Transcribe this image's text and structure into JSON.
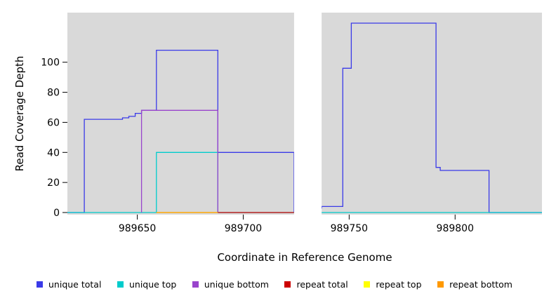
{
  "axes": {
    "xlabel": "Coordinate in Reference Genome",
    "ylabel": "Read Coverage Depth"
  },
  "chart_data": {
    "type": "line",
    "subtype": "step-coverage-plot",
    "title": "",
    "xlabel": "Coordinate in Reference Genome",
    "ylabel": "Read Coverage Depth",
    "xlim": [
      989617,
      989841
    ],
    "ylim": [
      0,
      133
    ],
    "x_ticks": [
      989650,
      989700,
      989750,
      989800
    ],
    "y_ticks": [
      0,
      20,
      40,
      60,
      80,
      100
    ],
    "grid": false,
    "plot_bg": "#d9d9d9",
    "figure_bg": "#ffffff",
    "tick_color": "#000000",
    "masked_region": {
      "x_start": 989724,
      "x_end": 989737
    },
    "legend_position": "bottom",
    "series": [
      {
        "name": "unique total",
        "color": "#3a3ae8",
        "points": [
          [
            989617,
            0
          ],
          [
            989625,
            0
          ],
          [
            989625,
            62
          ],
          [
            989643,
            62
          ],
          [
            989643,
            63
          ],
          [
            989646,
            63
          ],
          [
            989646,
            64
          ],
          [
            989649,
            64
          ],
          [
            989649,
            66
          ],
          [
            989652,
            66
          ],
          [
            989652,
            68
          ],
          [
            989659,
            68
          ],
          [
            989659,
            108
          ],
          [
            989688,
            108
          ],
          [
            989688,
            40
          ],
          [
            989724,
            40
          ],
          [
            989724,
            0
          ],
          [
            989734,
            0
          ],
          [
            989734,
            3
          ],
          [
            989737,
            3
          ],
          [
            989737,
            4
          ],
          [
            989747,
            4
          ],
          [
            989747,
            96
          ],
          [
            989751,
            96
          ],
          [
            989751,
            126
          ],
          [
            989791,
            126
          ],
          [
            989791,
            30
          ],
          [
            989793,
            30
          ],
          [
            989793,
            28
          ],
          [
            989816,
            28
          ],
          [
            989816,
            0
          ],
          [
            989841,
            0
          ]
        ]
      },
      {
        "name": "unique top",
        "color": "#00cccc",
        "points": [
          [
            989617,
            0
          ],
          [
            989659,
            0
          ],
          [
            989659,
            40
          ],
          [
            989688,
            40
          ],
          [
            989688,
            0
          ],
          [
            989841,
            0
          ]
        ]
      },
      {
        "name": "unique bottom",
        "color": "#9944cc",
        "points": [
          [
            989652,
            0
          ],
          [
            989652,
            68
          ],
          [
            989688,
            68
          ],
          [
            989688,
            0
          ]
        ]
      },
      {
        "name": "repeat total",
        "color": "#cc0000",
        "points": [
          [
            989688,
            0
          ],
          [
            989724,
            0
          ]
        ]
      },
      {
        "name": "repeat top",
        "color": "#ffff00",
        "points": [
          [
            989659,
            0
          ],
          [
            989688,
            0
          ]
        ]
      },
      {
        "name": "repeat bottom",
        "color": "#ff9900",
        "points": [
          [
            989659,
            0
          ],
          [
            989688,
            0
          ]
        ]
      }
    ]
  }
}
